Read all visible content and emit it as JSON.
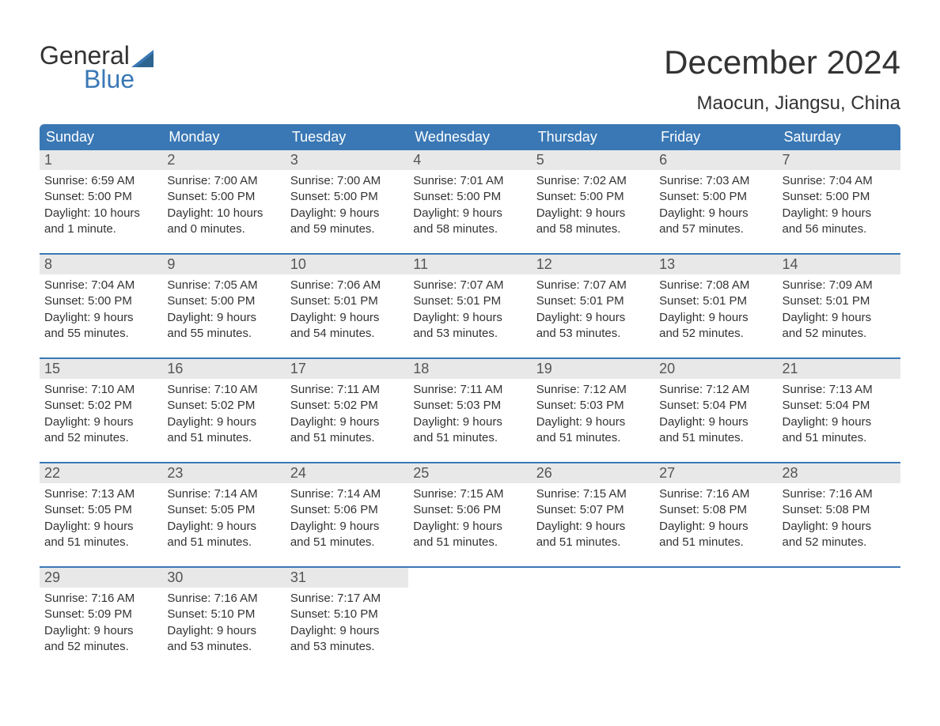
{
  "brand": {
    "word1": "General",
    "word2": "Blue",
    "logo_color": "#3a78b5"
  },
  "title": "December 2024",
  "location": "Maocun, Jiangsu, China",
  "colors": {
    "header_bg": "#3a78b5",
    "header_text": "#ffffff",
    "daynum_bg": "#e8e8e8",
    "body_text": "#333333",
    "page_bg": "#ffffff"
  },
  "typography": {
    "title_fontsize": 42,
    "location_fontsize": 24,
    "header_fontsize": 18,
    "daynum_fontsize": 18,
    "body_fontsize": 15
  },
  "day_labels": [
    "Sunday",
    "Monday",
    "Tuesday",
    "Wednesday",
    "Thursday",
    "Friday",
    "Saturday"
  ],
  "weeks": [
    [
      {
        "n": "1",
        "sunrise": "Sunrise: 6:59 AM",
        "sunset": "Sunset: 5:00 PM",
        "dl1": "Daylight: 10 hours",
        "dl2": "and 1 minute."
      },
      {
        "n": "2",
        "sunrise": "Sunrise: 7:00 AM",
        "sunset": "Sunset: 5:00 PM",
        "dl1": "Daylight: 10 hours",
        "dl2": "and 0 minutes."
      },
      {
        "n": "3",
        "sunrise": "Sunrise: 7:00 AM",
        "sunset": "Sunset: 5:00 PM",
        "dl1": "Daylight: 9 hours",
        "dl2": "and 59 minutes."
      },
      {
        "n": "4",
        "sunrise": "Sunrise: 7:01 AM",
        "sunset": "Sunset: 5:00 PM",
        "dl1": "Daylight: 9 hours",
        "dl2": "and 58 minutes."
      },
      {
        "n": "5",
        "sunrise": "Sunrise: 7:02 AM",
        "sunset": "Sunset: 5:00 PM",
        "dl1": "Daylight: 9 hours",
        "dl2": "and 58 minutes."
      },
      {
        "n": "6",
        "sunrise": "Sunrise: 7:03 AM",
        "sunset": "Sunset: 5:00 PM",
        "dl1": "Daylight: 9 hours",
        "dl2": "and 57 minutes."
      },
      {
        "n": "7",
        "sunrise": "Sunrise: 7:04 AM",
        "sunset": "Sunset: 5:00 PM",
        "dl1": "Daylight: 9 hours",
        "dl2": "and 56 minutes."
      }
    ],
    [
      {
        "n": "8",
        "sunrise": "Sunrise: 7:04 AM",
        "sunset": "Sunset: 5:00 PM",
        "dl1": "Daylight: 9 hours",
        "dl2": "and 55 minutes."
      },
      {
        "n": "9",
        "sunrise": "Sunrise: 7:05 AM",
        "sunset": "Sunset: 5:00 PM",
        "dl1": "Daylight: 9 hours",
        "dl2": "and 55 minutes."
      },
      {
        "n": "10",
        "sunrise": "Sunrise: 7:06 AM",
        "sunset": "Sunset: 5:01 PM",
        "dl1": "Daylight: 9 hours",
        "dl2": "and 54 minutes."
      },
      {
        "n": "11",
        "sunrise": "Sunrise: 7:07 AM",
        "sunset": "Sunset: 5:01 PM",
        "dl1": "Daylight: 9 hours",
        "dl2": "and 53 minutes."
      },
      {
        "n": "12",
        "sunrise": "Sunrise: 7:07 AM",
        "sunset": "Sunset: 5:01 PM",
        "dl1": "Daylight: 9 hours",
        "dl2": "and 53 minutes."
      },
      {
        "n": "13",
        "sunrise": "Sunrise: 7:08 AM",
        "sunset": "Sunset: 5:01 PM",
        "dl1": "Daylight: 9 hours",
        "dl2": "and 52 minutes."
      },
      {
        "n": "14",
        "sunrise": "Sunrise: 7:09 AM",
        "sunset": "Sunset: 5:01 PM",
        "dl1": "Daylight: 9 hours",
        "dl2": "and 52 minutes."
      }
    ],
    [
      {
        "n": "15",
        "sunrise": "Sunrise: 7:10 AM",
        "sunset": "Sunset: 5:02 PM",
        "dl1": "Daylight: 9 hours",
        "dl2": "and 52 minutes."
      },
      {
        "n": "16",
        "sunrise": "Sunrise: 7:10 AM",
        "sunset": "Sunset: 5:02 PM",
        "dl1": "Daylight: 9 hours",
        "dl2": "and 51 minutes."
      },
      {
        "n": "17",
        "sunrise": "Sunrise: 7:11 AM",
        "sunset": "Sunset: 5:02 PM",
        "dl1": "Daylight: 9 hours",
        "dl2": "and 51 minutes."
      },
      {
        "n": "18",
        "sunrise": "Sunrise: 7:11 AM",
        "sunset": "Sunset: 5:03 PM",
        "dl1": "Daylight: 9 hours",
        "dl2": "and 51 minutes."
      },
      {
        "n": "19",
        "sunrise": "Sunrise: 7:12 AM",
        "sunset": "Sunset: 5:03 PM",
        "dl1": "Daylight: 9 hours",
        "dl2": "and 51 minutes."
      },
      {
        "n": "20",
        "sunrise": "Sunrise: 7:12 AM",
        "sunset": "Sunset: 5:04 PM",
        "dl1": "Daylight: 9 hours",
        "dl2": "and 51 minutes."
      },
      {
        "n": "21",
        "sunrise": "Sunrise: 7:13 AM",
        "sunset": "Sunset: 5:04 PM",
        "dl1": "Daylight: 9 hours",
        "dl2": "and 51 minutes."
      }
    ],
    [
      {
        "n": "22",
        "sunrise": "Sunrise: 7:13 AM",
        "sunset": "Sunset: 5:05 PM",
        "dl1": "Daylight: 9 hours",
        "dl2": "and 51 minutes."
      },
      {
        "n": "23",
        "sunrise": "Sunrise: 7:14 AM",
        "sunset": "Sunset: 5:05 PM",
        "dl1": "Daylight: 9 hours",
        "dl2": "and 51 minutes."
      },
      {
        "n": "24",
        "sunrise": "Sunrise: 7:14 AM",
        "sunset": "Sunset: 5:06 PM",
        "dl1": "Daylight: 9 hours",
        "dl2": "and 51 minutes."
      },
      {
        "n": "25",
        "sunrise": "Sunrise: 7:15 AM",
        "sunset": "Sunset: 5:06 PM",
        "dl1": "Daylight: 9 hours",
        "dl2": "and 51 minutes."
      },
      {
        "n": "26",
        "sunrise": "Sunrise: 7:15 AM",
        "sunset": "Sunset: 5:07 PM",
        "dl1": "Daylight: 9 hours",
        "dl2": "and 51 minutes."
      },
      {
        "n": "27",
        "sunrise": "Sunrise: 7:16 AM",
        "sunset": "Sunset: 5:08 PM",
        "dl1": "Daylight: 9 hours",
        "dl2": "and 51 minutes."
      },
      {
        "n": "28",
        "sunrise": "Sunrise: 7:16 AM",
        "sunset": "Sunset: 5:08 PM",
        "dl1": "Daylight: 9 hours",
        "dl2": "and 52 minutes."
      }
    ],
    [
      {
        "n": "29",
        "sunrise": "Sunrise: 7:16 AM",
        "sunset": "Sunset: 5:09 PM",
        "dl1": "Daylight: 9 hours",
        "dl2": "and 52 minutes."
      },
      {
        "n": "30",
        "sunrise": "Sunrise: 7:16 AM",
        "sunset": "Sunset: 5:10 PM",
        "dl1": "Daylight: 9 hours",
        "dl2": "and 53 minutes."
      },
      {
        "n": "31",
        "sunrise": "Sunrise: 7:17 AM",
        "sunset": "Sunset: 5:10 PM",
        "dl1": "Daylight: 9 hours",
        "dl2": "and 53 minutes."
      },
      null,
      null,
      null,
      null
    ]
  ]
}
